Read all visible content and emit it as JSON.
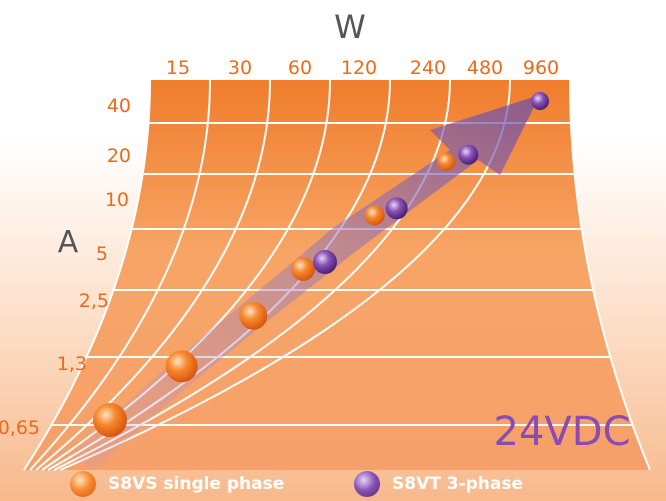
{
  "chart_data": {
    "type": "scatter",
    "title": "",
    "x_axis_label": "W",
    "y_axis_label": "A",
    "x_ticks": [
      "15",
      "30",
      "60",
      "120",
      "240",
      "480",
      "960"
    ],
    "y_ticks": [
      "40",
      "20",
      "10",
      "5",
      "2,5",
      "1,3",
      "0,65"
    ],
    "annotation": "24VDC",
    "series": [
      {
        "name": "S8VS single phase",
        "color": "#f47a20",
        "points": [
          {
            "w": 15,
            "a": 0.65
          },
          {
            "w": 30,
            "a": 1.3
          },
          {
            "w": 60,
            "a": 2.5
          },
          {
            "w": 120,
            "a": 5
          },
          {
            "w": 240,
            "a": 10
          },
          {
            "w": 480,
            "a": 20
          }
        ]
      },
      {
        "name": "S8VT 3-phase",
        "color": "#7a3ea0",
        "points": [
          {
            "w": 120,
            "a": 5
          },
          {
            "w": 240,
            "a": 10
          },
          {
            "w": 480,
            "a": 20
          },
          {
            "w": 960,
            "a": 40
          }
        ]
      }
    ],
    "x_scale": "log",
    "y_scale": "log"
  },
  "legend": [
    {
      "label": "S8VS single phase",
      "color": "#f47a20"
    },
    {
      "label": "S8VT 3-phase",
      "color": "#7a3ea0"
    }
  ]
}
